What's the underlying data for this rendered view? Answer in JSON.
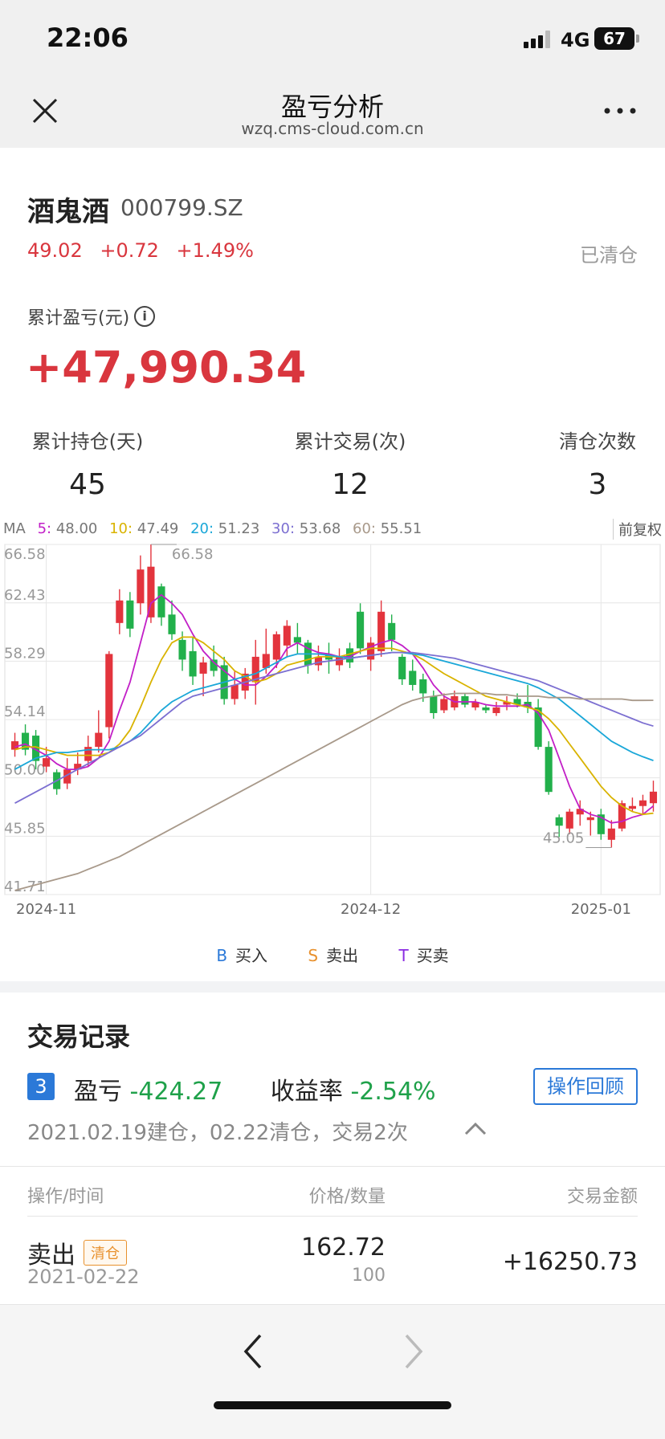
{
  "status": {
    "time": "22:06",
    "network": "4G",
    "battery": "67"
  },
  "nav": {
    "title": "盈亏分析",
    "subtitle": "wzq.cms-cloud.com.cn",
    "close_icon": "close-icon",
    "more_icon": "more-icon"
  },
  "stock": {
    "name": "酒鬼酒",
    "code": "000799.SZ",
    "price": "49.02",
    "change": "+0.72",
    "change_pct": "+1.49%",
    "status": "已清仓"
  },
  "pnl": {
    "label": "累计盈亏(元)",
    "value": "+47,990.34"
  },
  "stats": [
    {
      "label": "累计持仓(天)",
      "value": "45"
    },
    {
      "label": "累计交易(次)",
      "value": "12"
    },
    {
      "label": "清仓次数",
      "value": "3"
    }
  ],
  "ma_legend": {
    "prefix": "MA",
    "items": [
      {
        "key": "5:",
        "value": "48.00",
        "color": "#c21fc7"
      },
      {
        "key": "10:",
        "value": "47.49",
        "color": "#d9b300"
      },
      {
        "key": "20:",
        "value": "51.23",
        "color": "#1aa7d8"
      },
      {
        "key": "30:",
        "value": "53.68",
        "color": "#7c6fd1"
      },
      {
        "key": "60:",
        "value": "55.51",
        "color": "#a8998a"
      }
    ],
    "adjust_label": "前复权"
  },
  "chart_data": {
    "type": "candlestick",
    "y_ticks": [
      "66.58",
      "62.43",
      "58.29",
      "54.14",
      "50.00",
      "45.85",
      "41.71"
    ],
    "ylim": [
      41.71,
      66.58
    ],
    "x_ticks": [
      "2024-11",
      "2024-12",
      "2025-01"
    ],
    "annotations": {
      "high": "66.58",
      "low": "45.05"
    },
    "candles": [
      {
        "o": 52.0,
        "c": 52.6,
        "h": 53.2,
        "l": 51.5
      },
      {
        "o": 53.2,
        "c": 52.0,
        "h": 53.8,
        "l": 51.6
      },
      {
        "o": 53.0,
        "c": 51.2,
        "h": 53.4,
        "l": 50.6
      },
      {
        "o": 50.8,
        "c": 51.4,
        "h": 52.2,
        "l": 50.4
      },
      {
        "o": 50.4,
        "c": 49.2,
        "h": 50.6,
        "l": 48.8
      },
      {
        "o": 49.6,
        "c": 50.6,
        "h": 51.4,
        "l": 49.2
      },
      {
        "o": 50.6,
        "c": 51.0,
        "h": 51.8,
        "l": 50.2
      },
      {
        "o": 51.2,
        "c": 52.2,
        "h": 53.0,
        "l": 50.8
      },
      {
        "o": 52.2,
        "c": 53.2,
        "h": 54.8,
        "l": 51.8
      },
      {
        "o": 53.6,
        "c": 58.8,
        "h": 59.0,
        "l": 52.8
      },
      {
        "o": 61.0,
        "c": 62.6,
        "h": 63.4,
        "l": 60.2
      },
      {
        "o": 62.6,
        "c": 60.6,
        "h": 63.2,
        "l": 60.0
      },
      {
        "o": 62.4,
        "c": 64.8,
        "h": 65.8,
        "l": 61.6
      },
      {
        "o": 61.4,
        "c": 65.0,
        "h": 66.58,
        "l": 61.0
      },
      {
        "o": 63.6,
        "c": 61.4,
        "h": 63.8,
        "l": 60.8
      },
      {
        "o": 61.6,
        "c": 60.2,
        "h": 62.6,
        "l": 59.8
      },
      {
        "o": 59.8,
        "c": 58.4,
        "h": 60.4,
        "l": 57.6
      },
      {
        "o": 59.0,
        "c": 57.2,
        "h": 60.0,
        "l": 56.6
      },
      {
        "o": 57.4,
        "c": 58.2,
        "h": 58.6,
        "l": 55.8
      },
      {
        "o": 58.4,
        "c": 57.6,
        "h": 59.4,
        "l": 57.2
      },
      {
        "o": 58.0,
        "c": 55.6,
        "h": 58.6,
        "l": 55.2
      },
      {
        "o": 55.6,
        "c": 56.6,
        "h": 57.6,
        "l": 55.2
      },
      {
        "o": 56.2,
        "c": 57.4,
        "h": 57.8,
        "l": 55.6
      },
      {
        "o": 56.8,
        "c": 58.6,
        "h": 59.8,
        "l": 55.2
      },
      {
        "o": 57.8,
        "c": 58.8,
        "h": 60.6,
        "l": 57.4
      },
      {
        "o": 58.4,
        "c": 60.2,
        "h": 60.4,
        "l": 57.8
      },
      {
        "o": 59.4,
        "c": 60.8,
        "h": 61.2,
        "l": 58.6
      },
      {
        "o": 60.0,
        "c": 59.6,
        "h": 61.0,
        "l": 58.8
      },
      {
        "o": 59.6,
        "c": 58.0,
        "h": 59.8,
        "l": 57.4
      },
      {
        "o": 58.0,
        "c": 58.6,
        "h": 59.4,
        "l": 57.6
      },
      {
        "o": 58.8,
        "c": 58.4,
        "h": 59.6,
        "l": 57.4
      },
      {
        "o": 58.0,
        "c": 58.6,
        "h": 59.2,
        "l": 57.6
      },
      {
        "o": 59.2,
        "c": 58.2,
        "h": 59.6,
        "l": 57.8
      },
      {
        "o": 61.8,
        "c": 59.2,
        "h": 62.4,
        "l": 58.8
      },
      {
        "o": 58.4,
        "c": 59.6,
        "h": 60.0,
        "l": 57.6
      },
      {
        "o": 59.0,
        "c": 61.8,
        "h": 62.6,
        "l": 58.6
      },
      {
        "o": 61.0,
        "c": 59.8,
        "h": 61.6,
        "l": 59.0
      },
      {
        "o": 58.6,
        "c": 57.0,
        "h": 58.8,
        "l": 56.6
      },
      {
        "o": 57.6,
        "c": 56.6,
        "h": 58.4,
        "l": 56.2
      },
      {
        "o": 57.0,
        "c": 56.0,
        "h": 57.4,
        "l": 55.4
      },
      {
        "o": 55.8,
        "c": 54.6,
        "h": 56.2,
        "l": 54.2
      },
      {
        "o": 54.8,
        "c": 55.6,
        "h": 56.0,
        "l": 54.6
      },
      {
        "o": 55.0,
        "c": 55.8,
        "h": 56.2,
        "l": 54.8
      },
      {
        "o": 55.8,
        "c": 55.2,
        "h": 56.0,
        "l": 55.0
      },
      {
        "o": 55.0,
        "c": 55.4,
        "h": 55.6,
        "l": 54.8
      },
      {
        "o": 55.0,
        "c": 54.8,
        "h": 55.2,
        "l": 54.6
      },
      {
        "o": 54.6,
        "c": 55.0,
        "h": 55.4,
        "l": 54.4
      },
      {
        "o": 55.2,
        "c": 55.4,
        "h": 55.8,
        "l": 54.8
      },
      {
        "o": 55.6,
        "c": 55.2,
        "h": 56.0,
        "l": 55.0
      },
      {
        "o": 55.4,
        "c": 55.0,
        "h": 56.6,
        "l": 54.6
      },
      {
        "o": 55.0,
        "c": 52.2,
        "h": 55.6,
        "l": 52.0
      },
      {
        "o": 52.2,
        "c": 49.0,
        "h": 52.6,
        "l": 48.8
      },
      {
        "o": 47.2,
        "c": 46.6,
        "h": 47.4,
        "l": 45.8
      },
      {
        "o": 46.4,
        "c": 47.6,
        "h": 47.8,
        "l": 46.0
      },
      {
        "o": 47.4,
        "c": 47.8,
        "h": 48.4,
        "l": 46.6
      },
      {
        "o": 47.0,
        "c": 47.2,
        "h": 47.6,
        "l": 45.9
      },
      {
        "o": 47.4,
        "c": 46.0,
        "h": 47.8,
        "l": 45.6
      },
      {
        "o": 45.6,
        "c": 46.4,
        "h": 47.0,
        "l": 45.05
      },
      {
        "o": 46.4,
        "c": 48.2,
        "h": 48.4,
        "l": 46.2
      },
      {
        "o": 47.8,
        "c": 48.0,
        "h": 48.6,
        "l": 47.6
      },
      {
        "o": 48.0,
        "c": 48.4,
        "h": 48.8,
        "l": 47.4
      },
      {
        "o": 48.2,
        "c": 49.02,
        "h": 49.8,
        "l": 47.6
      }
    ],
    "series": [
      {
        "key": "5",
        "color": "#c21fc7",
        "values": [
          52.2,
          52.4,
          52.0,
          51.6,
          51.0,
          50.6,
          50.6,
          50.8,
          51.4,
          52.6,
          54.8,
          56.8,
          59.6,
          62.4,
          63.0,
          62.4,
          61.6,
          60.2,
          59.0,
          58.2,
          57.6,
          57.0,
          56.6,
          56.6,
          57.2,
          58.0,
          59.2,
          59.6,
          59.2,
          58.9,
          58.8,
          58.6,
          58.6,
          59.0,
          59.3,
          59.6,
          59.8,
          59.4,
          58.8,
          57.8,
          56.6,
          55.8,
          55.4,
          55.4,
          55.4,
          55.2,
          55.1,
          55.1,
          55.1,
          55.2,
          54.6,
          53.4,
          51.4,
          49.4,
          47.8,
          47.4,
          47.2,
          46.8,
          46.9,
          47.2,
          47.4,
          48.0
        ]
      },
      {
        "key": "10",
        "color": "#d9b300",
        "values": [
          52.0,
          52.2,
          52.2,
          52.0,
          51.8,
          51.6,
          51.6,
          51.6,
          51.6,
          51.8,
          52.4,
          53.4,
          55.0,
          56.8,
          58.4,
          59.6,
          60.0,
          60.0,
          59.6,
          59.0,
          58.4,
          57.6,
          57.2,
          56.8,
          57.0,
          57.4,
          58.0,
          58.2,
          58.4,
          58.6,
          58.6,
          58.6,
          58.8,
          59.0,
          59.2,
          59.2,
          59.2,
          59.0,
          58.8,
          58.4,
          57.9,
          57.4,
          57.0,
          56.6,
          56.2,
          55.8,
          55.6,
          55.4,
          55.2,
          55.0,
          54.8,
          54.2,
          53.4,
          52.4,
          51.4,
          50.4,
          49.4,
          48.6,
          48.0,
          47.6,
          47.4,
          47.49
        ]
      },
      {
        "key": "20",
        "color": "#1aa7d8",
        "values": [
          50.6,
          51.0,
          51.4,
          51.6,
          51.8,
          51.8,
          51.9,
          52.0,
          52.0,
          52.0,
          52.2,
          52.6,
          53.2,
          54.0,
          54.8,
          55.4,
          55.8,
          56.2,
          56.4,
          56.6,
          56.8,
          57.0,
          57.2,
          57.4,
          57.8,
          58.2,
          58.6,
          58.8,
          58.8,
          58.8,
          58.7,
          58.6,
          58.5,
          58.6,
          58.7,
          58.8,
          58.9,
          58.9,
          58.8,
          58.7,
          58.5,
          58.3,
          58.1,
          57.9,
          57.7,
          57.5,
          57.3,
          57.1,
          56.9,
          56.7,
          56.4,
          56.0,
          55.6,
          55.0,
          54.4,
          53.8,
          53.2,
          52.6,
          52.2,
          51.8,
          51.5,
          51.23
        ]
      },
      {
        "key": "30",
        "color": "#7c6fd1",
        "values": [
          48.2,
          48.6,
          49.0,
          49.4,
          49.8,
          50.2,
          50.6,
          51.0,
          51.4,
          51.8,
          52.2,
          52.6,
          53.0,
          53.6,
          54.2,
          54.8,
          55.4,
          55.8,
          56.0,
          56.2,
          56.4,
          56.6,
          56.8,
          57.0,
          57.2,
          57.4,
          57.6,
          57.8,
          58.0,
          58.2,
          58.3,
          58.4,
          58.5,
          58.6,
          58.7,
          58.8,
          58.9,
          58.9,
          58.9,
          58.8,
          58.7,
          58.6,
          58.5,
          58.3,
          58.1,
          57.9,
          57.7,
          57.5,
          57.3,
          57.1,
          56.9,
          56.6,
          56.3,
          56.0,
          55.7,
          55.4,
          55.1,
          54.8,
          54.5,
          54.2,
          53.9,
          53.68
        ]
      },
      {
        "key": "60",
        "color": "#a8998a",
        "values": [
          42.0,
          42.2,
          42.4,
          42.6,
          42.8,
          43.0,
          43.2,
          43.5,
          43.8,
          44.1,
          44.4,
          44.8,
          45.2,
          45.6,
          46.0,
          46.4,
          46.8,
          47.2,
          47.6,
          48.0,
          48.4,
          48.8,
          49.2,
          49.6,
          50.0,
          50.4,
          50.8,
          51.2,
          51.6,
          52.0,
          52.4,
          52.8,
          53.2,
          53.6,
          54.0,
          54.4,
          54.8,
          55.2,
          55.5,
          55.7,
          55.8,
          55.9,
          56.0,
          56.0,
          56.0,
          56.0,
          55.9,
          55.9,
          55.8,
          55.8,
          55.8,
          55.7,
          55.7,
          55.7,
          55.6,
          55.6,
          55.6,
          55.6,
          55.6,
          55.5,
          55.5,
          55.51
        ]
      }
    ]
  },
  "legend": [
    {
      "key": "B",
      "label": "买入",
      "color": "#2b79d8"
    },
    {
      "key": "S",
      "label": "卖出",
      "color": "#e8912e"
    },
    {
      "key": "T",
      "label": "买卖",
      "color": "#8a2be2"
    }
  ],
  "record": {
    "title": "交易记录",
    "badge": "3",
    "pnl_label": "盈亏",
    "pnl_value": "-424.27",
    "yield_label": "收益率",
    "yield_value": "-2.54%",
    "review_button": "操作回顾",
    "meta": "2021.02.19建仓，02.22清仓，交易2次",
    "headers": {
      "action": "操作/时间",
      "price": "价格/数量",
      "amount": "交易金额"
    },
    "rows": [
      {
        "action": "卖出",
        "tag": "清仓",
        "date": "2021-02-22",
        "price": "162.72",
        "qty": "100",
        "amount": "+16250.73"
      }
    ]
  }
}
